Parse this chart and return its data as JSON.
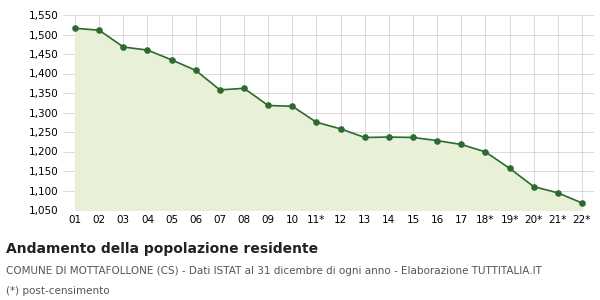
{
  "x_labels": [
    "01",
    "02",
    "03",
    "04",
    "05",
    "06",
    "07",
    "08",
    "09",
    "10",
    "11*",
    "12",
    "13",
    "14",
    "15",
    "16",
    "17",
    "18*",
    "19*",
    "20*",
    "21*",
    "22*"
  ],
  "y_values": [
    1516,
    1511,
    1468,
    1460,
    1435,
    1408,
    1358,
    1362,
    1318,
    1316,
    1275,
    1258,
    1236,
    1237,
    1236,
    1228,
    1218,
    1199,
    1157,
    1110,
    1094,
    1068
  ],
  "line_color": "#2d6a2d",
  "fill_color": "#e8f0d8",
  "marker_color": "#2d6a2d",
  "background_color": "#ffffff",
  "grid_color": "#cccccc",
  "ylim": [
    1050,
    1550
  ],
  "yticks": [
    1050,
    1100,
    1150,
    1200,
    1250,
    1300,
    1350,
    1400,
    1450,
    1500,
    1550
  ],
  "title": "Andamento della popolazione residente",
  "subtitle": "COMUNE DI MOTTAFOLLONE (CS) - Dati ISTAT al 31 dicembre di ogni anno - Elaborazione TUTTITALIA.IT",
  "footnote": "(*) post-censimento",
  "title_fontsize": 10,
  "subtitle_fontsize": 7.5,
  "footnote_fontsize": 7.5
}
